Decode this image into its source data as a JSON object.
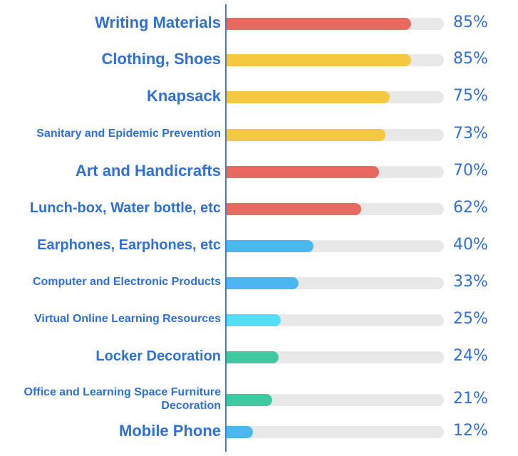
{
  "chart_data": {
    "type": "bar",
    "orientation": "horizontal",
    "categories": [
      "Writing Materials",
      "Clothing, Shoes",
      "Knapsack",
      "Sanitary and Epidemic Prevention",
      "Art and Handicrafts",
      "Lunch-box, Water bottle, etc",
      "Earphones, Earphones, etc",
      "Computer and Electronic Products",
      "Virtual Online Learning Resources",
      "Locker Decoration",
      "Office and Learning Space Furniture Decoration",
      "Mobile Phone"
    ],
    "values": [
      85,
      85,
      75,
      73,
      70,
      62,
      40,
      33,
      25,
      24,
      21,
      12
    ],
    "value_labels": [
      "85%",
      "85%",
      "75%",
      "73%",
      "70%",
      "62%",
      "40%",
      "33%",
      "25%",
      "24%",
      "21%",
      "12%"
    ],
    "bar_colors": [
      "#e8695f",
      "#f5c842",
      "#f5c842",
      "#f5c842",
      "#e8695f",
      "#e8695f",
      "#4ab8ee",
      "#4ab8ee",
      "#55dcf7",
      "#3ec9a0",
      "#3ec9a0",
      "#4ab8ee"
    ],
    "track_color": "#e8e8e8",
    "label_color": "#2f6fd6",
    "axis_color": "#3c7fc9",
    "xlim": [
      0,
      100
    ],
    "grid": false,
    "legend": "none"
  }
}
